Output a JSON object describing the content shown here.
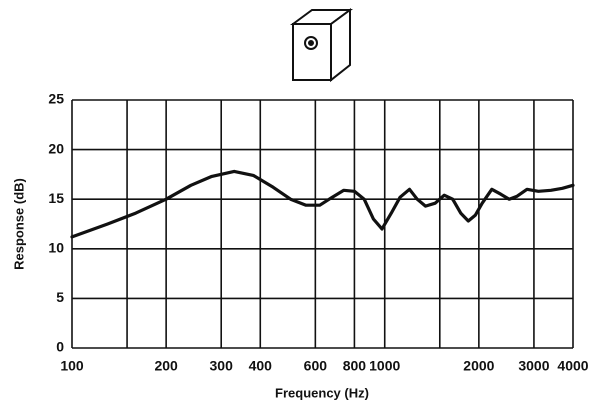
{
  "chart_data": {
    "type": "line",
    "xlabel": "Frequency (Hz)",
    "ylabel": "Response (dB)",
    "x": [
      100,
      130,
      160,
      200,
      240,
      280,
      330,
      380,
      440,
      500,
      560,
      620,
      680,
      740,
      800,
      860,
      920,
      980,
      1050,
      1120,
      1200,
      1270,
      1350,
      1450,
      1550,
      1650,
      1750,
      1850,
      1950,
      2050,
      2200,
      2350,
      2500,
      2650,
      2850,
      3100,
      3400,
      3700,
      4000
    ],
    "values": [
      11.2,
      12.5,
      13.6,
      15.0,
      16.4,
      17.3,
      17.8,
      17.4,
      16.2,
      15.0,
      14.4,
      14.4,
      15.2,
      15.9,
      15.8,
      15.0,
      13.0,
      12.0,
      13.6,
      15.2,
      16.0,
      15.0,
      14.3,
      14.6,
      15.4,
      15.0,
      13.6,
      12.8,
      13.4,
      14.6,
      16.0,
      15.5,
      15.0,
      15.3,
      16.0,
      15.8,
      15.9,
      16.1,
      16.4
    ],
    "color": "#111111",
    "xlim": [
      100,
      4000
    ],
    "xlog": true,
    "xticks": [
      100,
      200,
      300,
      400,
      600,
      800,
      1000,
      2000,
      3000,
      4000
    ],
    "xminor": [
      150,
      1500
    ],
    "ylim": [
      0,
      25
    ],
    "yticks": [
      0,
      5,
      10,
      15,
      20,
      25
    ],
    "grid": true
  }
}
